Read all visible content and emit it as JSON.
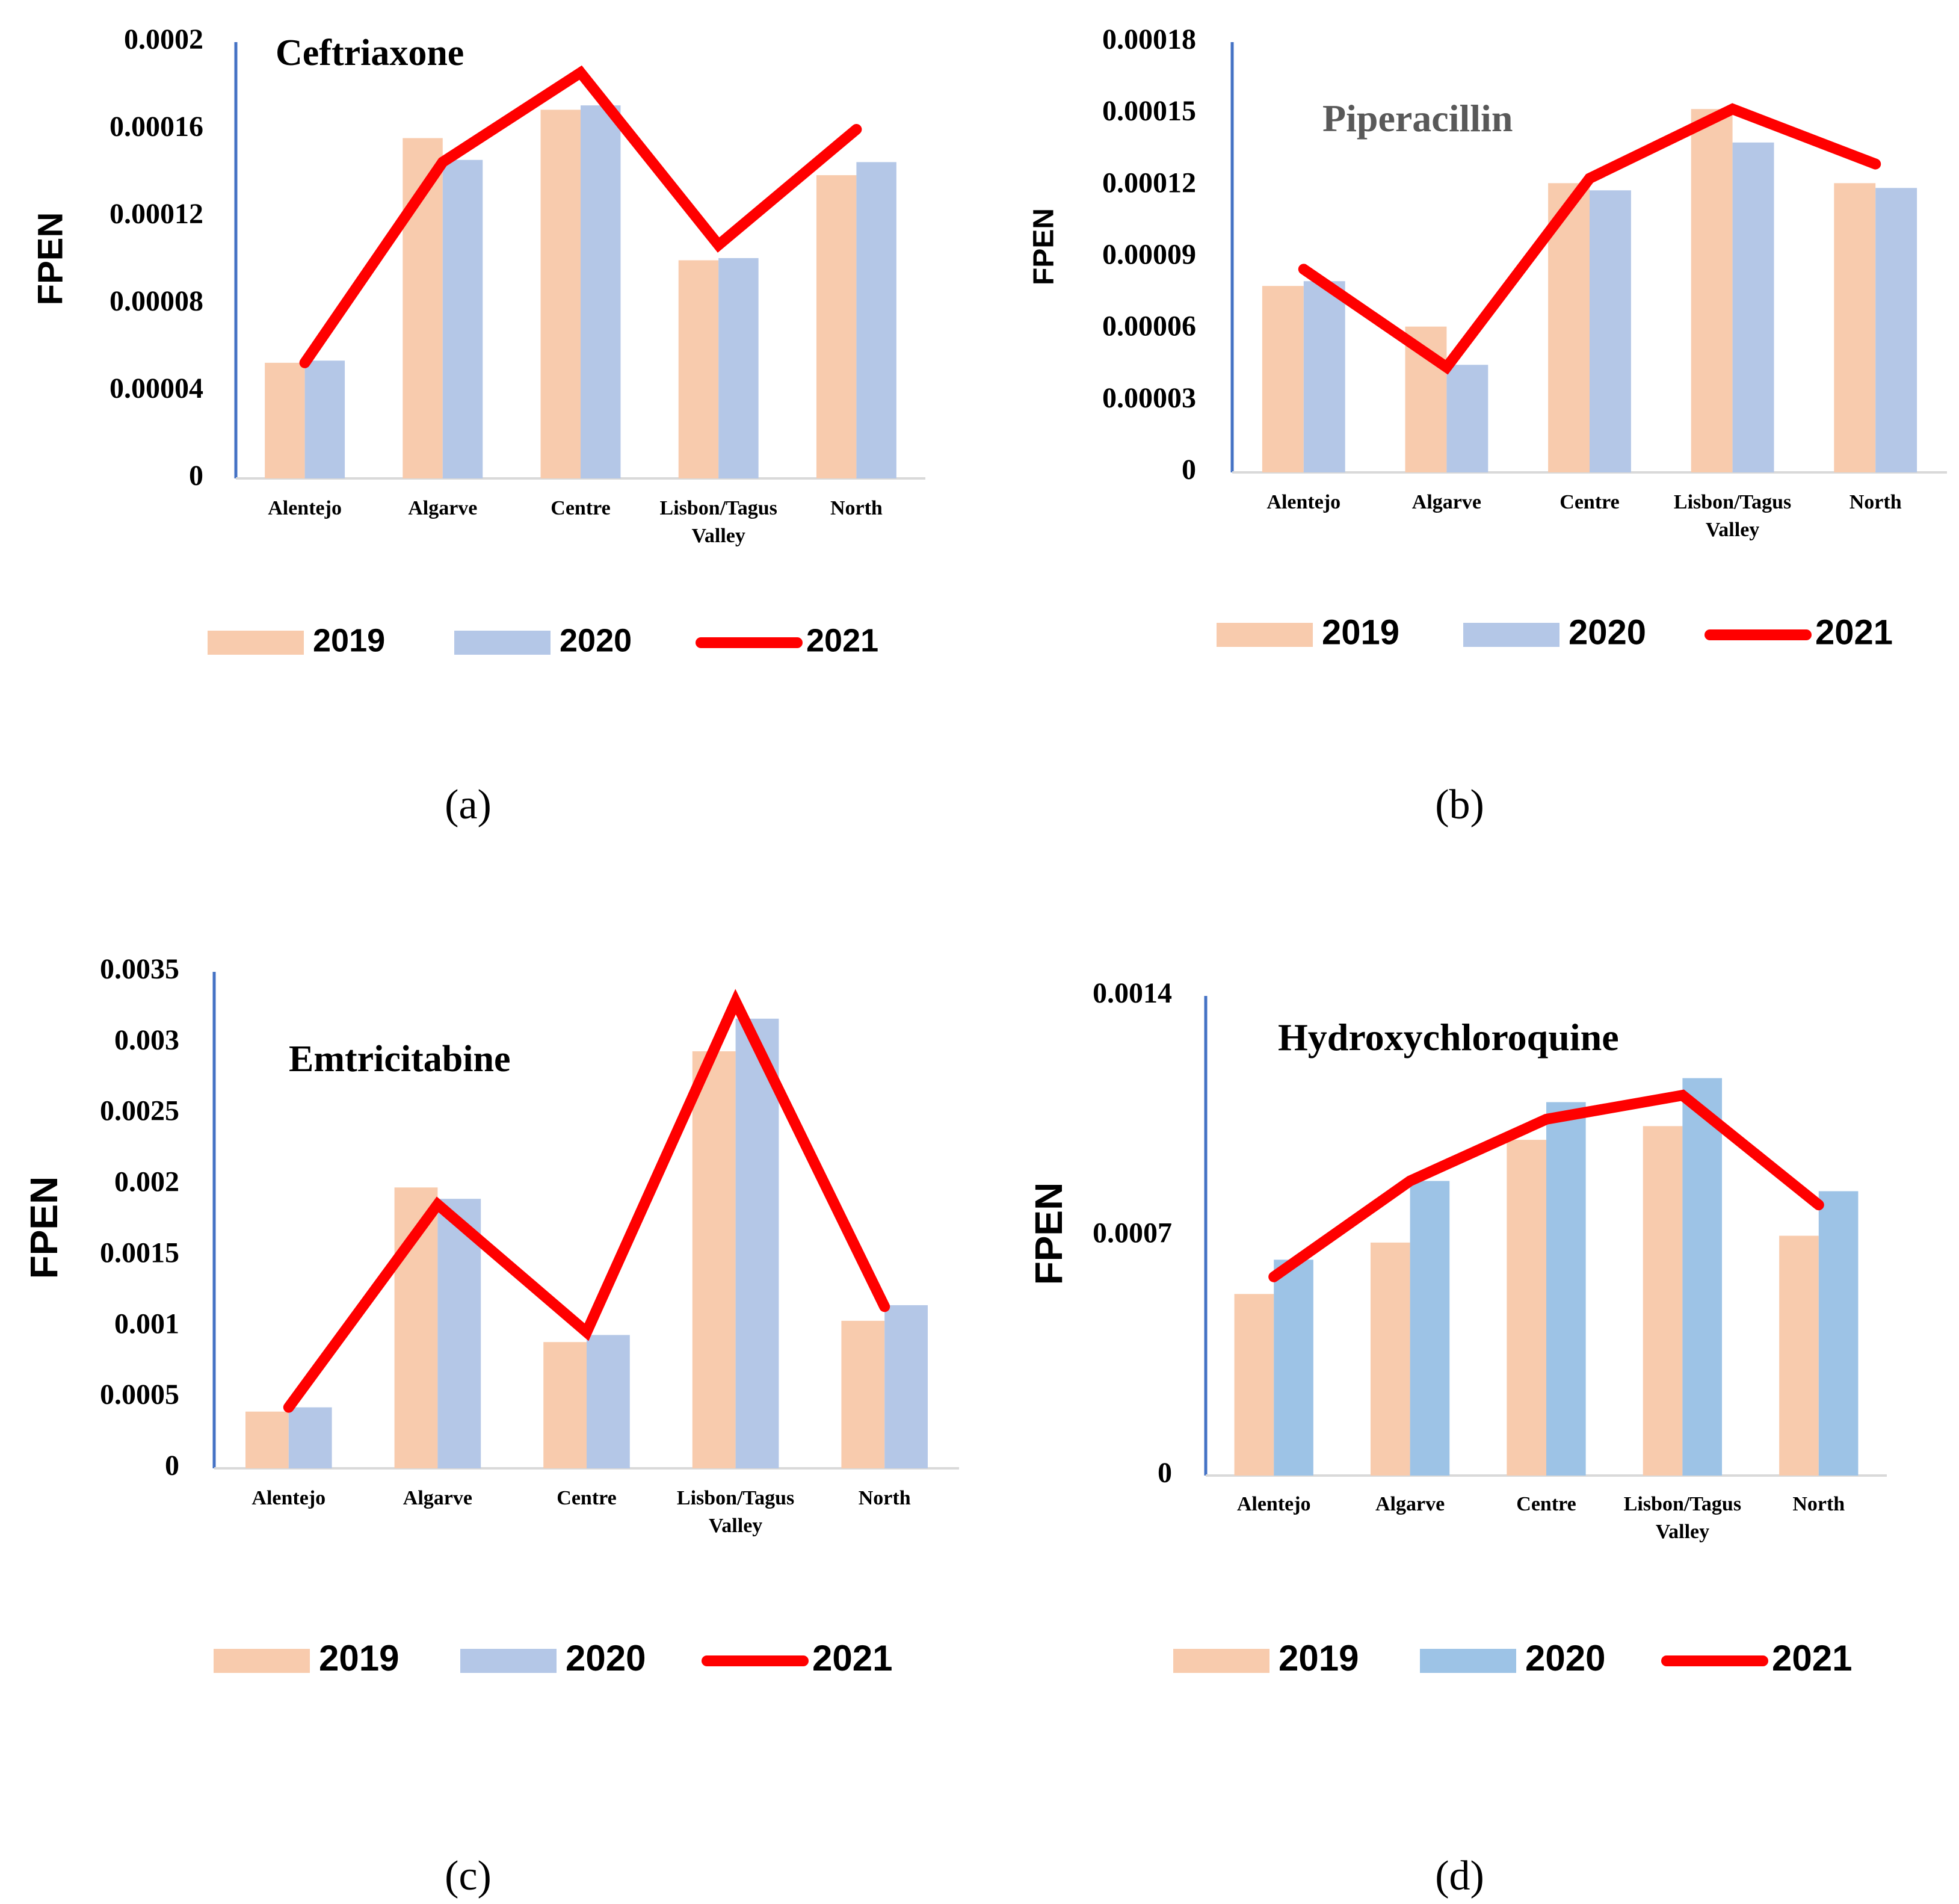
{
  "chart_data": [
    {
      "type": "bar",
      "panel_label": "(a)",
      "title": "Ceftriaxone",
      "title_color": "#000000",
      "xlabel": "",
      "ylabel": "FPEN",
      "ylim": [
        0,
        0.0002
      ],
      "y_ticks": [
        "0",
        "0.00004",
        "0.00008",
        "0.00012",
        "0.00016",
        "0.0002"
      ],
      "categories": [
        [
          "Alentejo"
        ],
        [
          "Algarve"
        ],
        [
          "Centre"
        ],
        [
          "Lisbon/Tagus",
          "Valley"
        ],
        [
          "North"
        ]
      ],
      "series": [
        {
          "name": "2019",
          "kind": "bar",
          "color": "#f8cbad",
          "values": [
            5.3e-05,
            0.000156,
            0.000169,
            0.0001,
            0.000139
          ]
        },
        {
          "name": "2020",
          "kind": "bar",
          "color": "#b4c7e7",
          "values": [
            5.4e-05,
            0.000146,
            0.000171,
            0.000101,
            0.000145
          ]
        },
        {
          "name": "2021",
          "kind": "line",
          "color": "#ff0000",
          "values": [
            5.3e-05,
            0.000145,
            0.000186,
            0.000107,
            0.00016
          ]
        }
      ]
    },
    {
      "type": "bar",
      "panel_label": "(b)",
      "title": "Piperacillin",
      "title_color": "#595959",
      "xlabel": "",
      "ylabel": "FPEN",
      "ylim": [
        0,
        0.00018
      ],
      "y_ticks": [
        "0",
        "0.00003",
        "0.00006",
        "0.00009",
        "0.00012",
        "0.00015",
        "0.00018"
      ],
      "categories": [
        [
          "Alentejo"
        ],
        [
          "Algarve"
        ],
        [
          "Centre"
        ],
        [
          "Lisbon/Tagus",
          "Valley"
        ],
        [
          "North"
        ]
      ],
      "series": [
        {
          "name": "2019",
          "kind": "bar",
          "color": "#f8cbad",
          "values": [
            7.8e-05,
            6.1e-05,
            0.000121,
            0.000152,
            0.000121
          ]
        },
        {
          "name": "2020",
          "kind": "bar",
          "color": "#b4c7e7",
          "values": [
            8e-05,
            4.5e-05,
            0.000118,
            0.000138,
            0.000119
          ]
        },
        {
          "name": "2021",
          "kind": "line",
          "color": "#ff0000",
          "values": [
            8.5e-05,
            4.4e-05,
            0.000123,
            0.000152,
            0.000129
          ]
        }
      ]
    },
    {
      "type": "bar",
      "panel_label": "(c)",
      "title": "Emtricitabine",
      "title_color": "#000000",
      "xlabel": "",
      "ylabel": "FPEN",
      "ylim": [
        0,
        0.0035
      ],
      "y_ticks": [
        "0",
        "0.0005",
        "0.001",
        "0.0015",
        "0.002",
        "0.0025",
        "0.003",
        "0.0035"
      ],
      "categories": [
        [
          "Alentejo"
        ],
        [
          "Algarve"
        ],
        [
          "Centre"
        ],
        [
          "Lisbon/Tagus",
          "Valley"
        ],
        [
          "North"
        ]
      ],
      "series": [
        {
          "name": "2019",
          "kind": "bar",
          "color": "#f8cbad",
          "values": [
            0.0004,
            0.00198,
            0.00089,
            0.00294,
            0.00104
          ]
        },
        {
          "name": "2020",
          "kind": "bar",
          "color": "#b4c7e7",
          "values": [
            0.00043,
            0.0019,
            0.00094,
            0.00317,
            0.00115
          ]
        },
        {
          "name": "2021",
          "kind": "line",
          "color": "#ff0000",
          "values": [
            0.00043,
            0.00186,
            0.00096,
            0.00329,
            0.00114
          ]
        }
      ]
    },
    {
      "type": "bar",
      "panel_label": "(d)",
      "title": "Hydroxychloroquine",
      "title_color": "#000000",
      "xlabel": "",
      "ylabel": "FPEN",
      "ylim": [
        0,
        0.0014
      ],
      "y_ticks": [
        "0",
        "0.0007",
        "0.0014"
      ],
      "categories": [
        [
          "Alentejo"
        ],
        [
          "Algarve"
        ],
        [
          "Centre"
        ],
        [
          "Lisbon/Tagus",
          "Valley"
        ],
        [
          "North"
        ]
      ],
      "series": [
        {
          "name": "2019",
          "kind": "bar",
          "color": "#f8cbad",
          "values": [
            0.00053,
            0.00068,
            0.00098,
            0.00102,
            0.0007
          ]
        },
        {
          "name": "2020",
          "kind": "bar",
          "color": "#9dc3e6",
          "values": [
            0.00063,
            0.00086,
            0.00109,
            0.00116,
            0.00083
          ]
        },
        {
          "name": "2021",
          "kind": "line",
          "color": "#ff0000",
          "values": [
            0.00058,
            0.00086,
            0.00104,
            0.00111,
            0.00079
          ]
        }
      ]
    }
  ]
}
